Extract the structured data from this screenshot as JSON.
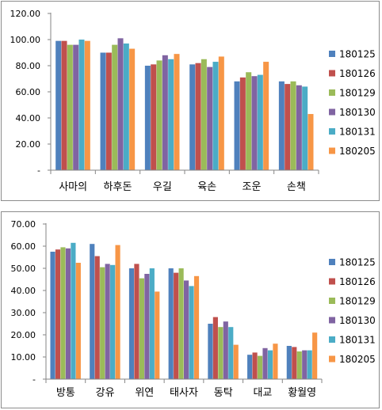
{
  "series_names": [
    "180125",
    "180126",
    "180129",
    "180130",
    "180131",
    "180205"
  ],
  "colors": {
    "180125": "#4F81BD",
    "180126": "#C0504D",
    "180129": "#9BBB59",
    "180130": "#8064A2",
    "180131": "#4BACC6",
    "180205": "#F79646",
    "axis": "#868686"
  },
  "chart_data": [
    {
      "type": "bar",
      "categories": [
        "사마의",
        "하후돈",
        "우길",
        "육손",
        "조운",
        "손책"
      ],
      "ylim": [
        0,
        120
      ],
      "yticks": [
        "-",
        "20.00",
        "40.00",
        "60.00",
        "80.00",
        "100.00",
        "120.00"
      ],
      "grid": false,
      "legend": "right",
      "series": [
        {
          "name": "180125",
          "values": [
            99,
            90,
            80,
            81,
            68,
            68
          ]
        },
        {
          "name": "180126",
          "values": [
            99,
            90,
            81,
            82,
            71,
            66
          ]
        },
        {
          "name": "180129",
          "values": [
            96,
            96,
            84,
            85,
            75,
            68
          ]
        },
        {
          "name": "180130",
          "values": [
            96,
            101,
            88,
            79,
            72,
            65
          ]
        },
        {
          "name": "180131",
          "values": [
            100,
            97,
            85,
            83,
            73,
            64
          ]
        },
        {
          "name": "180205",
          "values": [
            99,
            93,
            89,
            87,
            83,
            43
          ]
        }
      ]
    },
    {
      "type": "bar",
      "categories": [
        "방통",
        "강유",
        "위연",
        "태사자",
        "동탁",
        "대교",
        "황월영"
      ],
      "ylim": [
        0,
        70
      ],
      "yticks": [
        "-",
        "10.00",
        "20.00",
        "30.00",
        "40.00",
        "50.00",
        "60.00",
        "70.00"
      ],
      "grid": false,
      "legend": "right",
      "series": [
        {
          "name": "180125",
          "values": [
            57.5,
            61,
            50,
            50,
            25,
            11,
            15
          ]
        },
        {
          "name": "180126",
          "values": [
            58.5,
            55.5,
            52,
            48,
            28,
            12,
            14.5
          ]
        },
        {
          "name": "180129",
          "values": [
            59.5,
            50.5,
            45.5,
            50,
            23.5,
            10.5,
            12.5
          ]
        },
        {
          "name": "180130",
          "values": [
            59,
            52,
            47.5,
            44.5,
            26,
            14,
            13
          ]
        },
        {
          "name": "180131",
          "values": [
            61.5,
            51.5,
            50,
            42,
            23.5,
            13,
            13
          ]
        },
        {
          "name": "180205",
          "values": [
            52.5,
            60.5,
            39.5,
            46.5,
            15.5,
            16,
            21
          ]
        }
      ]
    }
  ]
}
